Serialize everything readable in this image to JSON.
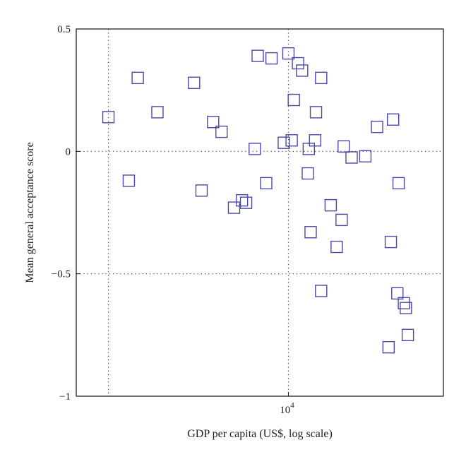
{
  "chart_data": {
    "type": "scatter",
    "xlabel": "GDP per capita (US$, log scale)",
    "ylabel": "Mean general acceptance score",
    "x_scale": "log",
    "xlim": [
      1500,
      40000
    ],
    "ylim": [
      -1,
      0.5
    ],
    "x_ticks": [
      {
        "value": 10000,
        "base": "10",
        "exp": "4"
      }
    ],
    "x_gridlines": [
      2000,
      10000
    ],
    "y_ticks": [
      {
        "value": 0.5,
        "label": "0.5"
      },
      {
        "value": 0,
        "label": "0"
      },
      {
        "value": -0.5,
        "label": "−0.5"
      },
      {
        "value": -1,
        "label": "−1"
      }
    ],
    "y_gridlines": [
      0,
      -0.5
    ],
    "grid": "dotted",
    "marker": "open-square",
    "marker_color": "#4a4aa8",
    "series": [
      {
        "points": [
          {
            "x": 2000,
            "y": 0.14
          },
          {
            "x": 2400,
            "y": -0.12
          },
          {
            "x": 2600,
            "y": 0.3
          },
          {
            "x": 3100,
            "y": 0.16
          },
          {
            "x": 4300,
            "y": 0.28
          },
          {
            "x": 4600,
            "y": -0.16
          },
          {
            "x": 5100,
            "y": 0.12
          },
          {
            "x": 5500,
            "y": 0.08
          },
          {
            "x": 6150,
            "y": -0.23
          },
          {
            "x": 6600,
            "y": -0.2
          },
          {
            "x": 6850,
            "y": -0.21
          },
          {
            "x": 7400,
            "y": 0.01
          },
          {
            "x": 7600,
            "y": 0.39
          },
          {
            "x": 8200,
            "y": -0.13
          },
          {
            "x": 8600,
            "y": 0.38
          },
          {
            "x": 9600,
            "y": 0.035
          },
          {
            "x": 10000,
            "y": 0.4
          },
          {
            "x": 10300,
            "y": 0.045
          },
          {
            "x": 10500,
            "y": 0.21
          },
          {
            "x": 10900,
            "y": 0.36
          },
          {
            "x": 11300,
            "y": 0.33
          },
          {
            "x": 11900,
            "y": -0.09
          },
          {
            "x": 12000,
            "y": 0.01
          },
          {
            "x": 12200,
            "y": -0.33
          },
          {
            "x": 12700,
            "y": 0.045
          },
          {
            "x": 12800,
            "y": 0.16
          },
          {
            "x": 13400,
            "y": 0.3
          },
          {
            "x": 13400,
            "y": -0.57
          },
          {
            "x": 14600,
            "y": -0.22
          },
          {
            "x": 15400,
            "y": -0.39
          },
          {
            "x": 16100,
            "y": -0.28
          },
          {
            "x": 16400,
            "y": 0.02
          },
          {
            "x": 17600,
            "y": -0.025
          },
          {
            "x": 19900,
            "y": -0.02
          },
          {
            "x": 22100,
            "y": 0.1
          },
          {
            "x": 24500,
            "y": -0.8
          },
          {
            "x": 25000,
            "y": -0.37
          },
          {
            "x": 25500,
            "y": 0.13
          },
          {
            "x": 26500,
            "y": -0.58
          },
          {
            "x": 26800,
            "y": -0.13
          },
          {
            "x": 28100,
            "y": -0.62
          },
          {
            "x": 28600,
            "y": -0.64
          },
          {
            "x": 29100,
            "y": -0.75
          }
        ]
      }
    ]
  }
}
